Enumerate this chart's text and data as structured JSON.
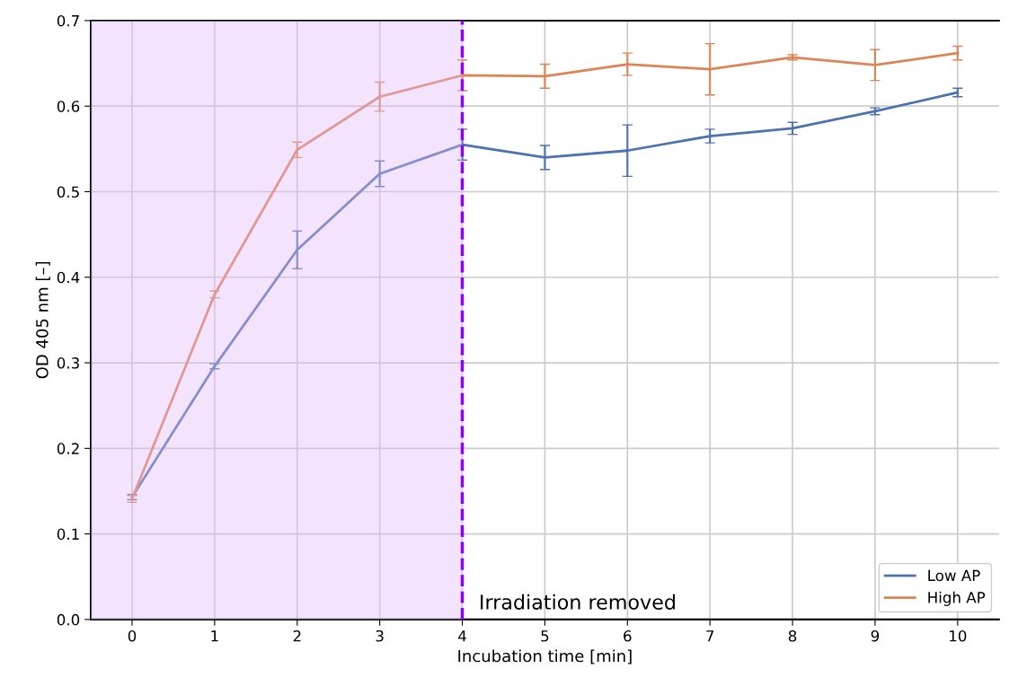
{
  "chart_data": {
    "type": "line",
    "xlabel": "Incubation time [min]",
    "ylabel": "OD 405 nm [–]",
    "x": [
      0,
      1,
      2,
      3,
      4,
      5,
      6,
      7,
      8,
      9,
      10
    ],
    "series": [
      {
        "name": "Low AP",
        "color": "#4c72b0",
        "values": [
          0.143,
          0.296,
          0.432,
          0.521,
          0.555,
          0.54,
          0.548,
          0.565,
          0.574,
          0.594,
          0.616
        ],
        "errors": [
          0.003,
          0.003,
          0.022,
          0.015,
          0.018,
          0.014,
          0.03,
          0.008,
          0.007,
          0.004,
          0.005
        ]
      },
      {
        "name": "High AP",
        "color": "#dd8452",
        "values": [
          0.141,
          0.38,
          0.549,
          0.611,
          0.636,
          0.635,
          0.649,
          0.643,
          0.657,
          0.648,
          0.662
        ],
        "errors": [
          0.004,
          0.004,
          0.009,
          0.017,
          0.018,
          0.014,
          0.013,
          0.03,
          0.003,
          0.018,
          0.008
        ]
      }
    ],
    "xlim": [
      -0.5,
      10.5
    ],
    "xticks": [
      0,
      1,
      2,
      3,
      4,
      5,
      6,
      7,
      8,
      9,
      10
    ],
    "ylim": [
      0,
      0.7
    ],
    "yticks": [
      {
        "value": 0,
        "label": "0.0"
      },
      0.1,
      0.2,
      0.3,
      0.4,
      0.5,
      0.6,
      0.7
    ],
    "bands": [
      {
        "axis": "x",
        "from": -0.5,
        "to": 4,
        "color": "#e2b8f7"
      }
    ],
    "ref_lines": [
      {
        "axis": "x",
        "value": 4,
        "label": "Irradiation removed",
        "color": "#8b00ff",
        "line_style": "dashed"
      }
    ],
    "grid": true,
    "legend": "bottom right"
  }
}
